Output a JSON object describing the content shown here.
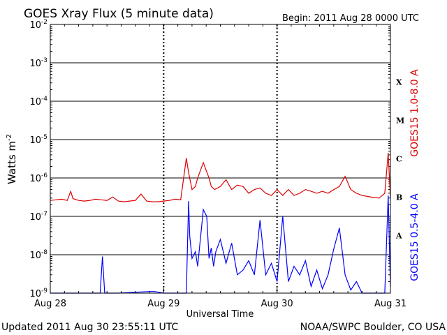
{
  "header": {
    "title": "GOES Xray Flux (5 minute data)",
    "begin": "Begin:  2011 Aug 28 0000 UTC"
  },
  "footer": {
    "updated": "Updated 2011 Aug 30 23:55:11 UTC",
    "credit": "NOAA/SWPC Boulder, CO USA"
  },
  "chart_data": {
    "type": "line",
    "title": "GOES Xray Flux (5 minute data)",
    "xlabel": "Universal Time",
    "ylabel": "Watts m",
    "ylabel_sup": "-2",
    "yscale": "log",
    "ylim": [
      1e-09,
      0.01
    ],
    "xlim": [
      0,
      3
    ],
    "y_tick_labels": [
      {
        "base": "10",
        "exp": "-9",
        "value": 1e-09
      },
      {
        "base": "10",
        "exp": "-8",
        "value": 1e-08
      },
      {
        "base": "10",
        "exp": "-7",
        "value": 1e-07
      },
      {
        "base": "10",
        "exp": "-6",
        "value": 1e-06
      },
      {
        "base": "10",
        "exp": "-5",
        "value": 1e-05
      },
      {
        "base": "10",
        "exp": "-4",
        "value": 0.0001
      },
      {
        "base": "10",
        "exp": "-3",
        "value": 0.001
      },
      {
        "base": "10",
        "exp": "-2",
        "value": 0.01
      }
    ],
    "x_ticks": [
      {
        "label": "Aug 28",
        "day": 0
      },
      {
        "label": "Aug 29",
        "day": 1
      },
      {
        "label": "Aug 30",
        "day": 2
      },
      {
        "label": "Aug 31",
        "day": 3
      }
    ],
    "flare_classes": [
      {
        "label": "A",
        "value": 1e-08
      },
      {
        "label": "B",
        "value": 1e-07
      },
      {
        "label": "C",
        "value": 1e-06
      },
      {
        "label": "M",
        "value": 1e-05
      },
      {
        "label": "X",
        "value": 0.0001
      }
    ],
    "grid": true,
    "series": [
      {
        "name": "GOES15 1.0-8.0 A",
        "color": "#dd0000",
        "x": [
          0,
          0.05,
          0.1,
          0.15,
          0.18,
          0.2,
          0.25,
          0.3,
          0.35,
          0.4,
          0.45,
          0.5,
          0.55,
          0.6,
          0.65,
          0.7,
          0.75,
          0.8,
          0.85,
          0.9,
          0.95,
          1.0,
          1.05,
          1.1,
          1.15,
          1.2,
          1.22,
          1.25,
          1.28,
          1.3,
          1.35,
          1.4,
          1.42,
          1.45,
          1.5,
          1.55,
          1.6,
          1.65,
          1.7,
          1.75,
          1.8,
          1.85,
          1.9,
          1.95,
          2.0,
          2.05,
          2.1,
          2.15,
          2.2,
          2.25,
          2.3,
          2.35,
          2.4,
          2.45,
          2.5,
          2.55,
          2.6,
          2.65,
          2.7,
          2.75,
          2.8,
          2.85,
          2.9,
          2.95,
          2.98,
          3.0
        ],
        "y": [
          2.6e-07,
          2.7e-07,
          2.8e-07,
          2.6e-07,
          4.5e-07,
          2.9e-07,
          2.6e-07,
          2.5e-07,
          2.6e-07,
          2.8e-07,
          2.7e-07,
          2.6e-07,
          3.2e-07,
          2.5e-07,
          2.4e-07,
          2.5e-07,
          2.6e-07,
          3.8e-07,
          2.5e-07,
          2.4e-07,
          2.4e-07,
          2.5e-07,
          2.6e-07,
          2.8e-07,
          2.7e-07,
          3.3e-06,
          1.4e-06,
          5e-07,
          6e-07,
          1e-06,
          2.5e-06,
          1e-06,
          6e-07,
          5e-07,
          6e-07,
          9e-07,
          5e-07,
          6.5e-07,
          6e-07,
          4e-07,
          5e-07,
          5.5e-07,
          4e-07,
          3.5e-07,
          5e-07,
          3.5e-07,
          5e-07,
          3.5e-07,
          4e-07,
          5e-07,
          4.5e-07,
          4e-07,
          4.5e-07,
          4e-07,
          5e-07,
          6e-07,
          1.1e-06,
          5e-07,
          4e-07,
          3.5e-07,
          3.3e-07,
          3.1e-07,
          3e-07,
          4e-07,
          4.5e-06,
          3e-07
        ]
      },
      {
        "name": "GOES15 0.5-4.0 A",
        "color": "#0000ff",
        "x": [
          0,
          0.1,
          0.2,
          0.4,
          0.44,
          0.46,
          0.48,
          0.6,
          0.88,
          0.9,
          0.92,
          1.0,
          1.1,
          1.2,
          1.22,
          1.23,
          1.25,
          1.28,
          1.3,
          1.32,
          1.35,
          1.38,
          1.4,
          1.42,
          1.44,
          1.46,
          1.5,
          1.55,
          1.6,
          1.65,
          1.7,
          1.75,
          1.8,
          1.85,
          1.9,
          1.95,
          2.0,
          2.05,
          2.1,
          2.15,
          2.2,
          2.25,
          2.3,
          2.35,
          2.4,
          2.45,
          2.5,
          2.55,
          2.6,
          2.65,
          2.7,
          2.75,
          2.8,
          2.85,
          2.9,
          2.95,
          2.98,
          3.0
        ],
        "y": [
          1e-09,
          1e-09,
          1e-09,
          1e-09,
          1e-09,
          9e-09,
          1e-09,
          1e-09,
          1.1e-09,
          1.1e-09,
          1.1e-09,
          1e-09,
          1e-09,
          1e-09,
          2.5e-07,
          3e-08,
          8e-09,
          1.2e-08,
          5e-09,
          2e-08,
          1.5e-07,
          1e-07,
          8e-09,
          1.5e-08,
          5e-09,
          1.2e-08,
          2.5e-08,
          6e-09,
          2e-08,
          3e-09,
          4e-09,
          7e-09,
          3e-09,
          8e-08,
          3e-09,
          6e-09,
          2e-09,
          1e-07,
          2e-09,
          5e-09,
          3e-09,
          7e-09,
          1.5e-09,
          4e-09,
          1.3e-09,
          3e-09,
          1.4e-08,
          5e-08,
          3e-09,
          1.2e-09,
          2e-09,
          1e-09,
          1e-09,
          1e-09,
          1e-09,
          1e-09,
          3.5e-07,
          1.5e-09
        ]
      }
    ]
  }
}
